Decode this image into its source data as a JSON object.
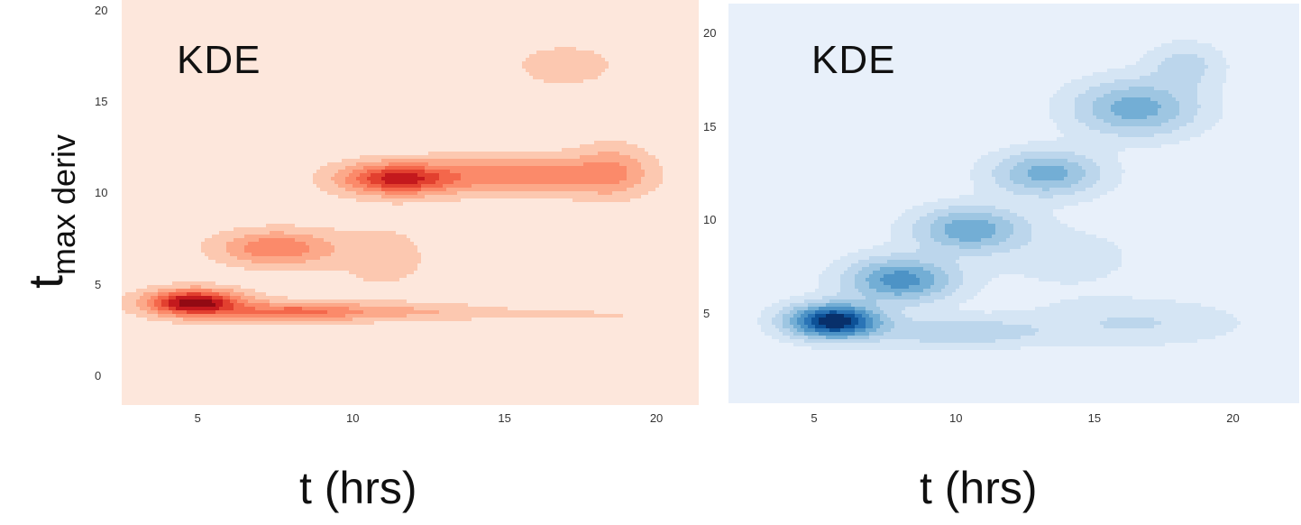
{
  "chart_data": [
    {
      "type": "kde",
      "panel": "left",
      "title": "KDE",
      "xlabel": "t (hrs)",
      "ylabel_main": "t",
      "ylabel_sub": "max deriv",
      "xlim": [
        2.4,
        21.4
      ],
      "ylim": [
        -1.6,
        20.6
      ],
      "xticks": [
        5,
        10,
        15,
        20
      ],
      "yticks": [
        0,
        5,
        10,
        15,
        20
      ],
      "background": "#fde7dc",
      "colors": [
        "#fcc8b0",
        "#fca98a",
        "#fb8a6a",
        "#f4674b",
        "#e2402f",
        "#c4191d",
        "#920a13"
      ],
      "density_peaks": [
        {
          "x": 4.8,
          "y": 4.0,
          "sx": 1.0,
          "sy": 0.45,
          "w": 1.0
        },
        {
          "x": 8.0,
          "y": 3.5,
          "sx": 1.6,
          "sy": 0.35,
          "w": 0.45
        },
        {
          "x": 12.0,
          "y": 3.5,
          "sx": 2.0,
          "sy": 0.3,
          "w": 0.15
        },
        {
          "x": 17.5,
          "y": 3.3,
          "sx": 1.8,
          "sy": 0.25,
          "w": 0.06
        },
        {
          "x": 11.5,
          "y": 10.8,
          "sx": 1.2,
          "sy": 0.55,
          "w": 0.75
        },
        {
          "x": 7.5,
          "y": 7.0,
          "sx": 1.2,
          "sy": 0.6,
          "w": 0.4
        },
        {
          "x": 15.5,
          "y": 11.0,
          "sx": 2.0,
          "sy": 0.65,
          "w": 0.4
        },
        {
          "x": 18.5,
          "y": 11.2,
          "sx": 0.8,
          "sy": 0.9,
          "w": 0.25
        },
        {
          "x": 17.0,
          "y": 17.0,
          "sx": 1.3,
          "sy": 0.9,
          "w": 0.08
        },
        {
          "x": 11.0,
          "y": 6.5,
          "sx": 1.3,
          "sy": 1.5,
          "w": 0.07
        }
      ]
    },
    {
      "type": "kde",
      "panel": "right",
      "title": "KDE",
      "xlabel": "t (hrs)",
      "xlim": [
        1.8,
        22.4
      ],
      "ylim": [
        0.2,
        21.6
      ],
      "xticks": [
        5,
        10,
        15,
        20
      ],
      "yticks": [
        5,
        10,
        15,
        20
      ],
      "background": "#e8f0fa",
      "colors": [
        "#d5e5f4",
        "#bcd6ec",
        "#9ec6e2",
        "#73aed5",
        "#4d93c6",
        "#2a74b6",
        "#0d5197",
        "#08306b"
      ],
      "density_peaks": [
        {
          "x": 5.6,
          "y": 4.6,
          "sx": 1.1,
          "sy": 0.6,
          "w": 1.0
        },
        {
          "x": 8.0,
          "y": 6.8,
          "sx": 1.3,
          "sy": 0.8,
          "w": 0.55
        },
        {
          "x": 10.5,
          "y": 9.5,
          "sx": 1.3,
          "sy": 0.8,
          "w": 0.45
        },
        {
          "x": 13.3,
          "y": 12.5,
          "sx": 1.3,
          "sy": 0.8,
          "w": 0.42
        },
        {
          "x": 16.5,
          "y": 16.0,
          "sx": 1.5,
          "sy": 1.0,
          "w": 0.42
        },
        {
          "x": 18.3,
          "y": 18.3,
          "sx": 0.9,
          "sy": 0.8,
          "w": 0.18
        },
        {
          "x": 10.0,
          "y": 4.0,
          "sx": 2.2,
          "sy": 0.55,
          "w": 0.22
        },
        {
          "x": 16.5,
          "y": 4.5,
          "sx": 2.5,
          "sy": 0.8,
          "w": 0.14
        },
        {
          "x": 14.0,
          "y": 8.0,
          "sx": 2.2,
          "sy": 1.4,
          "w": 0.07
        }
      ]
    }
  ]
}
